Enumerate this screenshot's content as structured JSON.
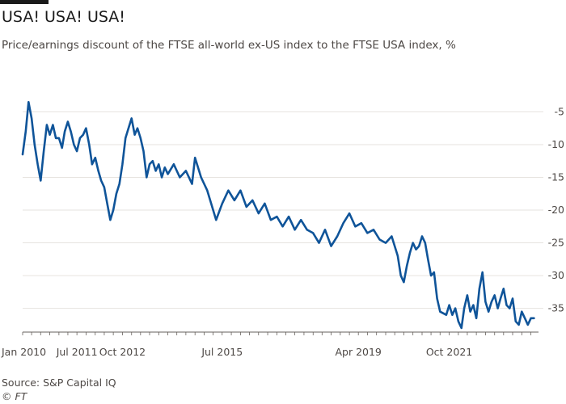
{
  "header": {
    "title": "USA! USA! USA!",
    "subtitle": "Price/earnings discount of the FTSE all-world ex-US index to the FTSE USA index, %"
  },
  "footer": {
    "source": "Source: S&P Capital IQ",
    "copyright": "© FT"
  },
  "colors": {
    "line": "#0f5499",
    "grid": "#e6e3df",
    "text": "#4d4845",
    "accent_bar": "#1a1a1a"
  },
  "chart_data": {
    "type": "line",
    "title": "USA! USA! USA!",
    "subtitle": "Price/earnings discount of the FTSE all-world ex-US index to the FTSE USA index, %",
    "xlabel": "",
    "ylabel": "",
    "x_ticks": [
      "Jan 2010",
      "Jul 2011",
      "Oct 2012",
      "Jul 2015",
      "Apr 2019",
      "Oct 2021"
    ],
    "y_ticks": [
      -5,
      -10,
      -15,
      -20,
      -25,
      -30,
      -35
    ],
    "ylim": [
      -38.5,
      -1
    ],
    "grid": "horizontal",
    "legend": "none",
    "series": [
      {
        "values": [
          [
            "2010-01-01",
            -11.5
          ],
          [
            "2010-02-01",
            -8
          ],
          [
            "2010-03-01",
            -3.5
          ],
          [
            "2010-04-01",
            -6
          ],
          [
            "2010-05-01",
            -10
          ],
          [
            "2010-06-01",
            -13
          ],
          [
            "2010-07-01",
            -15.5
          ],
          [
            "2010-08-01",
            -11
          ],
          [
            "2010-09-01",
            -7
          ],
          [
            "2010-10-01",
            -8.5
          ],
          [
            "2010-11-01",
            -7
          ],
          [
            "2010-12-01",
            -9
          ],
          [
            "2011-01-01",
            -9
          ],
          [
            "2011-02-01",
            -10.5
          ],
          [
            "2011-03-01",
            -8
          ],
          [
            "2011-04-01",
            -6.5
          ],
          [
            "2011-05-01",
            -8
          ],
          [
            "2011-06-01",
            -10
          ],
          [
            "2011-07-01",
            -11
          ],
          [
            "2011-08-01",
            -9
          ],
          [
            "2011-09-01",
            -8.5
          ],
          [
            "2011-10-01",
            -7.5
          ],
          [
            "2011-11-01",
            -10
          ],
          [
            "2011-12-01",
            -13
          ],
          [
            "2012-01-01",
            -12
          ],
          [
            "2012-02-01",
            -14
          ],
          [
            "2012-03-01",
            -15.5
          ],
          [
            "2012-04-01",
            -16.5
          ],
          [
            "2012-05-01",
            -19
          ],
          [
            "2012-06-01",
            -21.5
          ],
          [
            "2012-07-01",
            -20
          ],
          [
            "2012-08-01",
            -17.5
          ],
          [
            "2012-09-01",
            -16
          ],
          [
            "2012-10-01",
            -13
          ],
          [
            "2012-11-01",
            -9
          ],
          [
            "2012-12-01",
            -7.5
          ],
          [
            "2013-01-01",
            -6
          ],
          [
            "2013-02-01",
            -8.5
          ],
          [
            "2013-03-01",
            -7.5
          ],
          [
            "2013-04-01",
            -9
          ],
          [
            "2013-05-01",
            -11
          ],
          [
            "2013-06-01",
            -15
          ],
          [
            "2013-07-01",
            -13
          ],
          [
            "2013-08-01",
            -12.5
          ],
          [
            "2013-09-01",
            -14
          ],
          [
            "2013-10-01",
            -13
          ],
          [
            "2013-11-01",
            -15
          ],
          [
            "2013-12-01",
            -13.5
          ],
          [
            "2014-01-01",
            -14.5
          ],
          [
            "2014-03-01",
            -13
          ],
          [
            "2014-05-01",
            -15
          ],
          [
            "2014-07-01",
            -14
          ],
          [
            "2014-09-01",
            -16
          ],
          [
            "2014-10-01",
            -12
          ],
          [
            "2014-12-01",
            -15
          ],
          [
            "2015-02-01",
            -17
          ],
          [
            "2015-04-01",
            -20
          ],
          [
            "2015-05-01",
            -21.5
          ],
          [
            "2015-07-01",
            -19
          ],
          [
            "2015-09-01",
            -17
          ],
          [
            "2015-11-01",
            -18.5
          ],
          [
            "2016-01-01",
            -17
          ],
          [
            "2016-03-01",
            -19.5
          ],
          [
            "2016-05-01",
            -18.5
          ],
          [
            "2016-07-01",
            -20.5
          ],
          [
            "2016-09-01",
            -19
          ],
          [
            "2016-11-01",
            -21.5
          ],
          [
            "2017-01-01",
            -21
          ],
          [
            "2017-03-01",
            -22.5
          ],
          [
            "2017-05-01",
            -21
          ],
          [
            "2017-07-01",
            -23
          ],
          [
            "2017-09-01",
            -21.5
          ],
          [
            "2017-11-01",
            -23
          ],
          [
            "2018-01-01",
            -23.5
          ],
          [
            "2018-03-01",
            -25
          ],
          [
            "2018-05-01",
            -23
          ],
          [
            "2018-07-01",
            -25.5
          ],
          [
            "2018-09-01",
            -24
          ],
          [
            "2018-11-01",
            -22
          ],
          [
            "2019-01-01",
            -20.5
          ],
          [
            "2019-03-01",
            -22.5
          ],
          [
            "2019-05-01",
            -22
          ],
          [
            "2019-07-01",
            -23.5
          ],
          [
            "2019-09-01",
            -23
          ],
          [
            "2019-11-01",
            -24.5
          ],
          [
            "2020-01-01",
            -25
          ],
          [
            "2020-03-01",
            -24
          ],
          [
            "2020-05-01",
            -27
          ],
          [
            "2020-06-01",
            -30
          ],
          [
            "2020-07-01",
            -31
          ],
          [
            "2020-08-01",
            -28.5
          ],
          [
            "2020-09-01",
            -26.5
          ],
          [
            "2020-10-01",
            -25
          ],
          [
            "2020-11-01",
            -26
          ],
          [
            "2020-12-01",
            -25.5
          ],
          [
            "2021-01-01",
            -24
          ],
          [
            "2021-02-01",
            -25
          ],
          [
            "2021-03-01",
            -27.5
          ],
          [
            "2021-04-01",
            -30
          ],
          [
            "2021-05-01",
            -29.5
          ],
          [
            "2021-06-01",
            -33.5
          ],
          [
            "2021-07-01",
            -35.5
          ],
          [
            "2021-09-01",
            -36
          ],
          [
            "2021-10-01",
            -34.5
          ],
          [
            "2021-11-01",
            -36
          ],
          [
            "2021-12-01",
            -35
          ],
          [
            "2022-01-01",
            -37
          ],
          [
            "2022-02-01",
            -38
          ],
          [
            "2022-03-01",
            -35
          ],
          [
            "2022-04-01",
            -33
          ],
          [
            "2022-05-01",
            -35.5
          ],
          [
            "2022-06-01",
            -34.5
          ],
          [
            "2022-07-01",
            -36.5
          ],
          [
            "2022-08-01",
            -32
          ],
          [
            "2022-09-01",
            -29.5
          ],
          [
            "2022-10-01",
            -34
          ],
          [
            "2022-11-01",
            -35.5
          ],
          [
            "2022-12-01",
            -34
          ],
          [
            "2023-01-01",
            -33
          ],
          [
            "2023-02-01",
            -35
          ],
          [
            "2023-03-01",
            -33.5
          ],
          [
            "2023-04-01",
            -32
          ],
          [
            "2023-05-01",
            -34.5
          ],
          [
            "2023-06-01",
            -35
          ],
          [
            "2023-07-01",
            -33.5
          ],
          [
            "2023-08-01",
            -37
          ],
          [
            "2023-09-01",
            -37.5
          ],
          [
            "2023-10-01",
            -35.5
          ],
          [
            "2023-11-01",
            -36.5
          ],
          [
            "2023-12-01",
            -37.5
          ],
          [
            "2024-01-01",
            -36.5
          ],
          [
            "2024-02-01",
            -36.5
          ]
        ]
      }
    ]
  }
}
